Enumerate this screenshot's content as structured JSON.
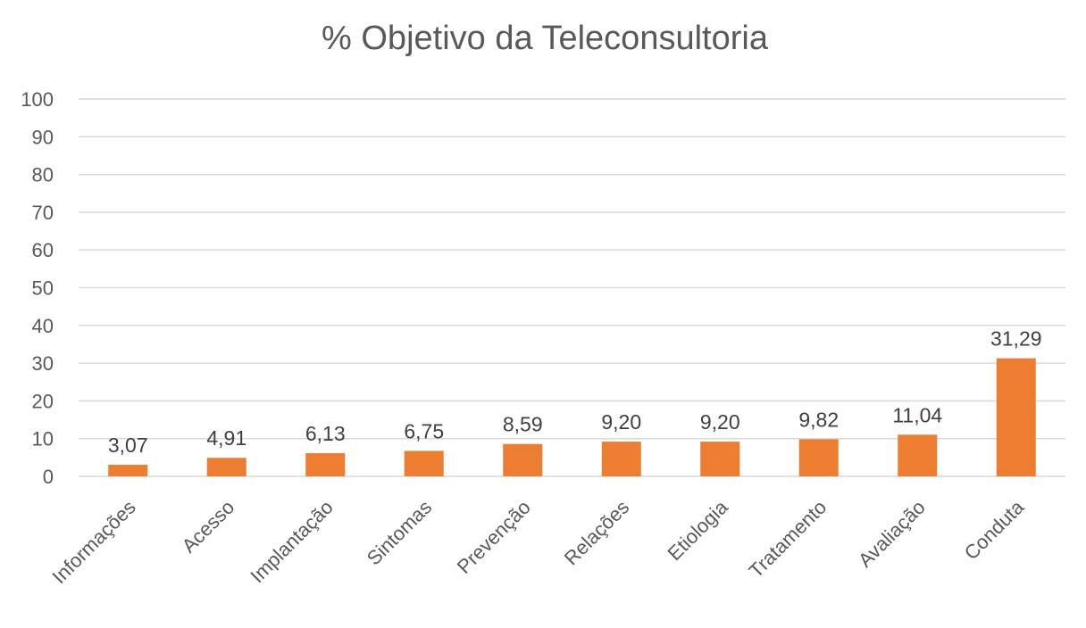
{
  "chart_data": {
    "type": "bar",
    "title": "% Objetivo da Teleconsultoria",
    "xlabel": "",
    "ylabel": "",
    "categories": [
      "Informações",
      "Acesso",
      "Implantação",
      "Sintomas",
      "Prevenção",
      "Relações",
      "Etiologia",
      "Tratamento",
      "Avaliação",
      "Conduta"
    ],
    "values": [
      3.07,
      4.91,
      6.13,
      6.75,
      8.59,
      9.2,
      9.2,
      9.82,
      11.04,
      31.29
    ],
    "data_labels": [
      "3,07",
      "4,91",
      "6,13",
      "6,75",
      "8,59",
      "9,20",
      "9,20",
      "9,82",
      "11,04",
      "31,29"
    ],
    "ylim": [
      0,
      100
    ],
    "yticks": [
      "0",
      "10",
      "20",
      "30",
      "40",
      "50",
      "60",
      "70",
      "80",
      "90",
      "100"
    ],
    "grid": true,
    "legend": "none",
    "colors": {
      "bar": "#ed7d31",
      "grid": "#d9d9d9",
      "text": "#595959"
    }
  }
}
